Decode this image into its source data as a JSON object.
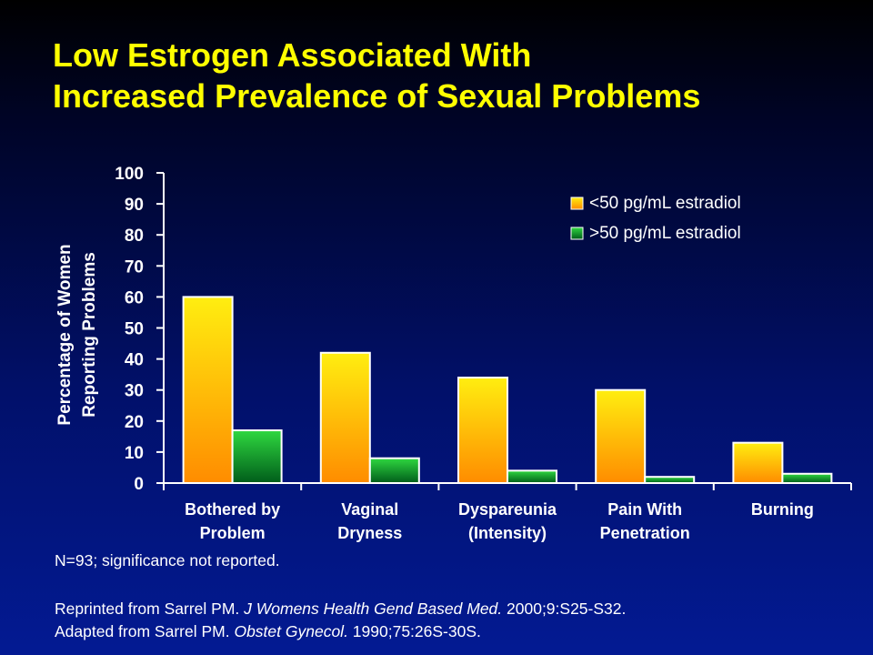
{
  "title_lines": [
    "Low Estrogen Associated With",
    "Increased Prevalence of Sexual Problems"
  ],
  "chart_data": {
    "type": "bar",
    "categories": [
      [
        "Bothered by",
        "Problem"
      ],
      [
        "Vaginal",
        "Dryness"
      ],
      [
        "Dyspareunia",
        "(Intensity)"
      ],
      [
        "Pain With",
        "Penetration"
      ],
      [
        "Burning"
      ]
    ],
    "series": [
      {
        "name": "<50 pg/mL estradiol",
        "values": [
          60,
          42,
          34,
          30,
          13
        ],
        "color": "#ffd21a"
      },
      {
        "name": ">50 pg/mL estradiol",
        "values": [
          17,
          8,
          4,
          2,
          3
        ],
        "color": "#1fc43a"
      }
    ],
    "ylabel": [
      "Percentage of Women",
      "Reporting Problems"
    ],
    "xlabel": "",
    "ylim": [
      0,
      100
    ],
    "yticks": [
      0,
      10,
      20,
      30,
      40,
      50,
      60,
      70,
      80,
      90,
      100
    ],
    "grid": false,
    "legend_position": "top-right"
  },
  "footnote": "N=93; significance not reported.",
  "reference_1": {
    "pre": "Reprinted from Sarrel PM. ",
    "journal": "J Womens Health Gend Based Med.",
    "post": " 2000;9:S25-S32."
  },
  "reference_2": {
    "pre": "Adapted from Sarrel PM. ",
    "journal": "Obstet Gynecol.",
    "post": " 1990;75:26S-30S."
  }
}
